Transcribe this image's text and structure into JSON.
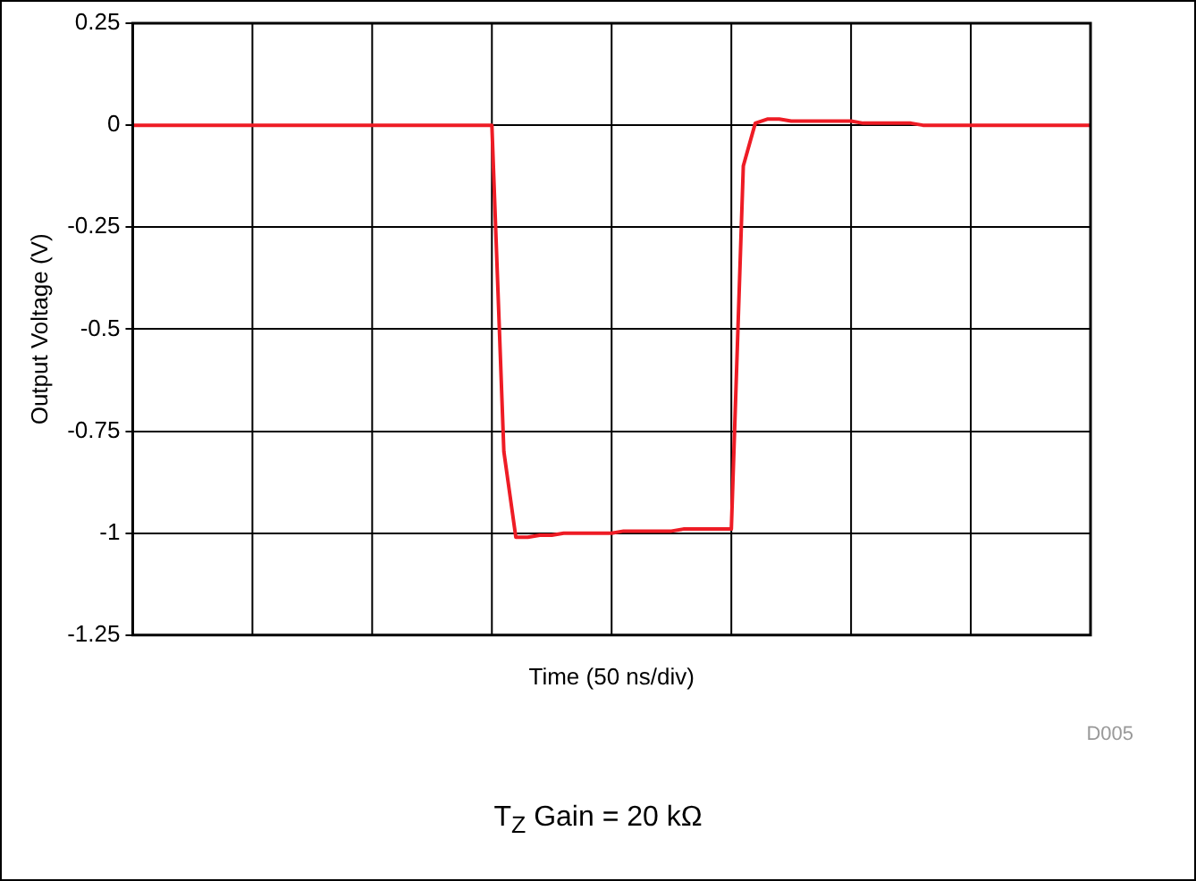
{
  "chart_data": {
    "type": "line",
    "xlabel": "Time (50 ns/div)",
    "ylabel": "Output Voltage (V)",
    "annotations": [
      "D005",
      "T$_{Z}$ Gain = 20 kΩ"
    ],
    "categories": [
      null,
      null,
      null,
      null,
      null,
      null,
      null,
      null,
      null,
      null,
      null,
      null,
      null,
      null,
      null,
      null,
      null,
      null,
      null,
      null,
      null,
      null,
      null,
      null,
      null,
      null,
      null,
      null,
      null,
      null,
      null,
      null,
      null,
      null,
      null,
      null,
      null,
      null,
      null,
      null,
      null,
      null,
      null,
      null,
      null,
      null,
      null,
      null,
      null,
      null,
      null,
      null,
      null,
      null,
      null,
      null,
      null,
      null,
      null,
      null,
      null,
      null,
      null,
      null,
      null,
      null,
      null,
      null,
      null,
      null,
      null,
      null,
      null,
      null,
      null,
      null,
      null,
      null,
      null,
      null,
      null
    ],
    "series": [
      {
        "color": "#ee1c25",
        "values": [
          0,
          0,
          0,
          0,
          0,
          0,
          0,
          0,
          0,
          0,
          0,
          0,
          0,
          0,
          0,
          0,
          0,
          0,
          0,
          0,
          0,
          0,
          0,
          0,
          0,
          0,
          0,
          0,
          0,
          0,
          0,
          -0.8,
          -1.01,
          -1.01,
          -1.005,
          -1.005,
          -1,
          -1,
          -1,
          -1,
          -1,
          -0.995,
          -0.995,
          -0.995,
          -0.995,
          -0.995,
          -0.99,
          -0.99,
          -0.99,
          -0.99,
          -0.99,
          -0.1,
          0.005,
          0.015,
          0.015,
          0.01,
          0.01,
          0.01,
          0.01,
          0.01,
          0.01,
          0.005,
          0.005,
          0.005,
          0.005,
          0.005,
          0,
          0,
          0,
          0,
          0,
          0,
          0,
          0,
          0,
          0,
          0,
          0,
          0,
          0,
          0
        ]
      }
    ],
    "ylim": [
      -1.25,
      0.25
    ],
    "yticks": [
      0.25,
      0,
      -0.25,
      -0.5,
      -0.75,
      -1,
      -1.25
    ],
    "grid": true,
    "legend": false,
    "tick_labels": "y",
    "marker": "none",
    "line_style": "solid"
  }
}
